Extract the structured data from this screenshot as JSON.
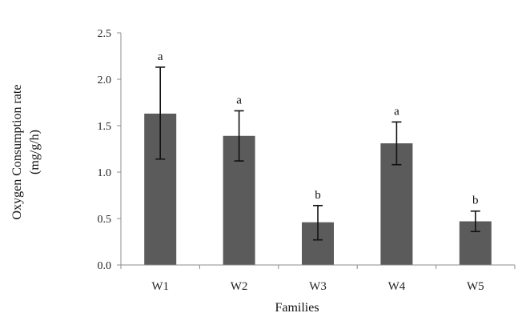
{
  "chart_data": {
    "type": "bar",
    "categories": [
      "W1",
      "W2",
      "W3",
      "W4",
      "W5"
    ],
    "values": [
      1.63,
      1.39,
      0.46,
      1.31,
      0.47
    ],
    "error_bars": [
      {
        "low": 1.14,
        "high": 2.13
      },
      {
        "low": 1.12,
        "high": 1.66
      },
      {
        "low": 0.27,
        "high": 0.64
      },
      {
        "low": 1.08,
        "high": 1.54
      },
      {
        "low": 0.36,
        "high": 0.58
      }
    ],
    "significance_labels": [
      "a",
      "a",
      "b",
      "a",
      "b"
    ],
    "title": "",
    "xlabel": "Families",
    "ylabel_line1": "Oxygen Consumption rate",
    "ylabel_line2": "(mg/g/h)",
    "ylim": [
      0,
      2.5
    ],
    "yticks": [
      0.0,
      0.5,
      1.0,
      1.5,
      2.0,
      2.5
    ],
    "ytick_labels": [
      "0.0",
      "0.5",
      "1.0",
      "1.5",
      "2.0",
      "2.5"
    ],
    "grid": false,
    "legend": "none",
    "bar_color": "#5b5b5b",
    "error_color": "#111111",
    "axis_color": "#8c8c8c"
  }
}
